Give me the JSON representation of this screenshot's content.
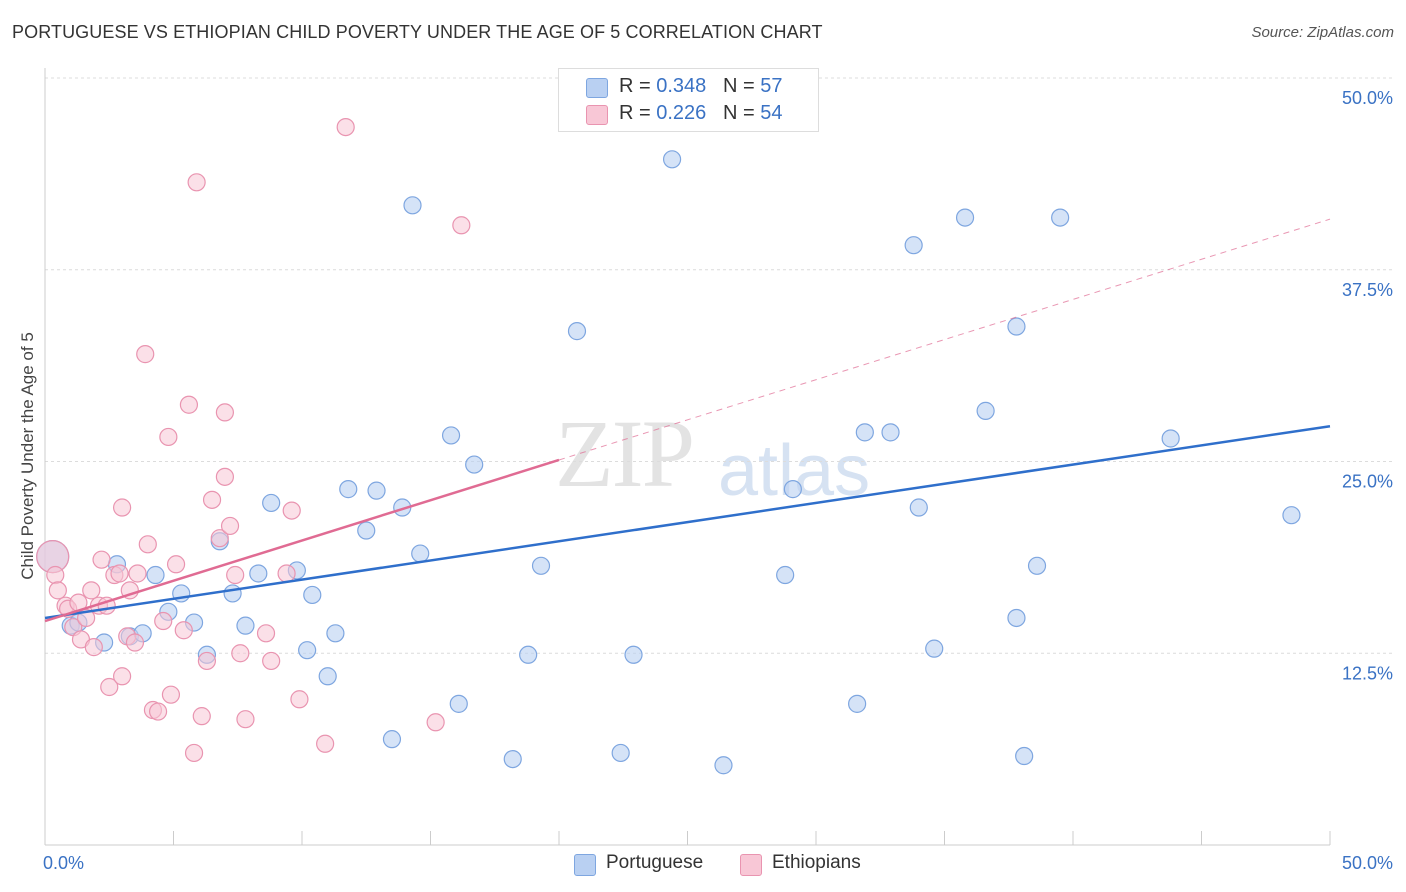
{
  "title": "PORTUGUESE VS ETHIOPIAN CHILD POVERTY UNDER THE AGE OF 5 CORRELATION CHART",
  "source": "Source: ZipAtlas.com",
  "watermark": {
    "zip": "ZIP",
    "atlas": "atlas"
  },
  "colors": {
    "portuguese_fill": "#b9d0f2",
    "portuguese_stroke": "#7ea6e0",
    "portuguese_line": "#2f6fcb",
    "ethiopian_fill": "#f8c7d6",
    "ethiopian_stroke": "#e994b0",
    "ethiopian_line": "#e06b93",
    "axis_label_blue": "#3a72c4"
  },
  "legend_top": [
    {
      "r_label": "R = ",
      "r_value": "0.348",
      "n_label": "N = ",
      "n_value": "57"
    },
    {
      "r_label": "R = ",
      "r_value": "0.226",
      "n_label": "N = ",
      "n_value": "54"
    }
  ],
  "legend_bottom": [
    "Portuguese",
    "Ethiopians"
  ],
  "chart_data": {
    "type": "scatter",
    "title": "PORTUGUESE VS ETHIOPIAN CHILD POVERTY UNDER THE AGE OF 5 CORRELATION CHART",
    "xlabel": "",
    "ylabel": "Child Poverty Under the Age of 5",
    "xlim": [
      0,
      50
    ],
    "ylim": [
      0,
      50
    ],
    "x_tick_labels": [
      "0.0%",
      "50.0%"
    ],
    "y_tick_values": [
      12.5,
      25.0,
      37.5,
      50.0
    ],
    "y_tick_labels": [
      "12.5%",
      "25.0%",
      "37.5%",
      "50.0%"
    ],
    "grid": true,
    "series": [
      {
        "name": "Portuguese",
        "r": 0.348,
        "n": 57,
        "trend": {
          "x": [
            0,
            50
          ],
          "y": [
            14.8,
            27.3
          ]
        },
        "points": [
          [
            0.3,
            18.8
          ],
          [
            1.0,
            14.3
          ],
          [
            1.3,
            14.5
          ],
          [
            2.3,
            13.2
          ],
          [
            2.8,
            18.3
          ],
          [
            3.3,
            13.6
          ],
          [
            3.8,
            13.8
          ],
          [
            4.3,
            17.6
          ],
          [
            4.8,
            15.2
          ],
          [
            5.3,
            16.4
          ],
          [
            5.8,
            14.5
          ],
          [
            6.3,
            12.4
          ],
          [
            6.8,
            19.8
          ],
          [
            7.3,
            16.4
          ],
          [
            7.8,
            14.3
          ],
          [
            8.3,
            17.7
          ],
          [
            8.8,
            22.3
          ],
          [
            9.8,
            17.9
          ],
          [
            10.2,
            12.7
          ],
          [
            10.4,
            16.3
          ],
          [
            11.0,
            11.0
          ],
          [
            11.3,
            13.8
          ],
          [
            11.8,
            23.2
          ],
          [
            12.5,
            20.5
          ],
          [
            12.9,
            23.1
          ],
          [
            13.5,
            6.9
          ],
          [
            13.9,
            22.0
          ],
          [
            14.3,
            41.7
          ],
          [
            14.6,
            19.0
          ],
          [
            15.8,
            26.7
          ],
          [
            16.1,
            9.2
          ],
          [
            16.7,
            24.8
          ],
          [
            18.2,
            5.6
          ],
          [
            18.8,
            12.4
          ],
          [
            19.3,
            18.2
          ],
          [
            20.7,
            33.5
          ],
          [
            22.4,
            6.0
          ],
          [
            22.9,
            12.4
          ],
          [
            24.4,
            44.7
          ],
          [
            26.4,
            5.2
          ],
          [
            28.8,
            17.6
          ],
          [
            29.1,
            23.2
          ],
          [
            31.6,
            9.2
          ],
          [
            31.9,
            26.9
          ],
          [
            32.9,
            26.9
          ],
          [
            33.8,
            39.1
          ],
          [
            34.6,
            12.8
          ],
          [
            35.8,
            40.9
          ],
          [
            36.6,
            28.3
          ],
          [
            37.8,
            14.8
          ],
          [
            37.8,
            33.8
          ],
          [
            38.1,
            5.8
          ],
          [
            38.6,
            18.2
          ],
          [
            39.5,
            40.9
          ],
          [
            43.8,
            26.5
          ],
          [
            48.5,
            21.5
          ],
          [
            34.0,
            22.0
          ]
        ]
      },
      {
        "name": "Ethiopians",
        "r": 0.226,
        "n": 54,
        "trend": {
          "x": [
            0,
            20
          ],
          "y": [
            14.6,
            25.1
          ]
        },
        "trend_extension": {
          "x": [
            20,
            50
          ],
          "y": [
            25.1,
            40.8
          ]
        },
        "points": [
          [
            0.3,
            18.8
          ],
          [
            0.4,
            17.6
          ],
          [
            0.5,
            16.6
          ],
          [
            0.8,
            15.6
          ],
          [
            0.9,
            15.4
          ],
          [
            1.1,
            14.2
          ],
          [
            1.3,
            15.8
          ],
          [
            1.4,
            13.4
          ],
          [
            1.6,
            14.8
          ],
          [
            1.8,
            16.6
          ],
          [
            1.9,
            12.9
          ],
          [
            2.1,
            15.6
          ],
          [
            2.2,
            18.6
          ],
          [
            2.4,
            15.6
          ],
          [
            2.5,
            10.3
          ],
          [
            2.7,
            17.6
          ],
          [
            2.9,
            17.7
          ],
          [
            3.0,
            11.0
          ],
          [
            3.2,
            13.6
          ],
          [
            3.3,
            16.6
          ],
          [
            3.5,
            13.2
          ],
          [
            3.6,
            17.7
          ],
          [
            3.9,
            32.0
          ],
          [
            4.0,
            19.6
          ],
          [
            4.2,
            8.8
          ],
          [
            4.4,
            8.7
          ],
          [
            4.6,
            14.6
          ],
          [
            4.8,
            26.6
          ],
          [
            4.9,
            9.8
          ],
          [
            5.1,
            18.3
          ],
          [
            5.4,
            14.0
          ],
          [
            5.6,
            28.7
          ],
          [
            5.8,
            6.0
          ],
          [
            5.9,
            43.2
          ],
          [
            6.1,
            8.4
          ],
          [
            6.3,
            12.0
          ],
          [
            6.5,
            22.5
          ],
          [
            6.8,
            20.0
          ],
          [
            7.0,
            28.2
          ],
          [
            7.2,
            20.8
          ],
          [
            7.4,
            17.6
          ],
          [
            7.6,
            12.5
          ],
          [
            7.8,
            8.2
          ],
          [
            8.6,
            13.8
          ],
          [
            8.8,
            12.0
          ],
          [
            9.4,
            17.7
          ],
          [
            9.6,
            21.8
          ],
          [
            9.9,
            9.5
          ],
          [
            10.9,
            6.6
          ],
          [
            11.7,
            46.8
          ],
          [
            15.2,
            8.0
          ],
          [
            16.2,
            40.4
          ],
          [
            7.0,
            24.0
          ],
          [
            3.0,
            22.0
          ]
        ]
      }
    ]
  }
}
